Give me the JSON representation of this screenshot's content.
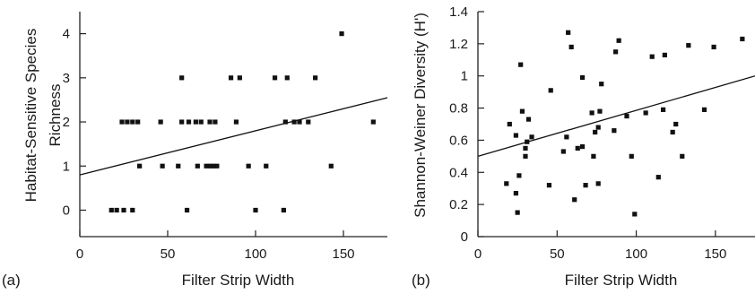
{
  "chart_data": [
    {
      "type": "scatter",
      "panel_label": "(a)",
      "xlabel": "Filter Strip Width",
      "ylabel_lines": [
        "Habitat-Sensitive Species",
        "Richness"
      ],
      "xlim": [
        0,
        175
      ],
      "ylim": [
        -0.6,
        4.5
      ],
      "xticks": [
        0,
        50,
        100,
        150
      ],
      "yticks": [
        0,
        1,
        2,
        3,
        4
      ],
      "points": [
        [
          18,
          0
        ],
        [
          21,
          0
        ],
        [
          25,
          0
        ],
        [
          30,
          0
        ],
        [
          61,
          0
        ],
        [
          100,
          0
        ],
        [
          116,
          0
        ],
        [
          34,
          1
        ],
        [
          47,
          1
        ],
        [
          56,
          1
        ],
        [
          67,
          1
        ],
        [
          72,
          1
        ],
        [
          74,
          1
        ],
        [
          76,
          1
        ],
        [
          78,
          1
        ],
        [
          96,
          1
        ],
        [
          106,
          1
        ],
        [
          143,
          1
        ],
        [
          24,
          2
        ],
        [
          27,
          2
        ],
        [
          30,
          2
        ],
        [
          33,
          2
        ],
        [
          46,
          2
        ],
        [
          58,
          2
        ],
        [
          62,
          2
        ],
        [
          66,
          2
        ],
        [
          69,
          2
        ],
        [
          74,
          2
        ],
        [
          77,
          2
        ],
        [
          89,
          2
        ],
        [
          117,
          2
        ],
        [
          122,
          2
        ],
        [
          125,
          2
        ],
        [
          130,
          2
        ],
        [
          167,
          2
        ],
        [
          58,
          3
        ],
        [
          86,
          3
        ],
        [
          91,
          3
        ],
        [
          111,
          3
        ],
        [
          118,
          3
        ],
        [
          134,
          3
        ],
        [
          149,
          4
        ]
      ],
      "trendline": {
        "x": [
          0,
          175
        ],
        "y": [
          0.8,
          2.55
        ]
      },
      "grid": false,
      "legend": "none"
    },
    {
      "type": "scatter",
      "panel_label": "(b)",
      "xlabel": "Filter Strip Width",
      "ylabel_lines": [
        "Shannon-Weiner Diversity (H')"
      ],
      "xlim": [
        0,
        175
      ],
      "ylim": [
        0,
        1.4
      ],
      "xticks": [
        0,
        50,
        100,
        150
      ],
      "yticks": [
        0,
        0.2,
        0.4,
        0.6,
        0.8,
        1,
        1.2,
        1.4
      ],
      "ytick_labels": [
        "0",
        "0.2",
        "0.4",
        "0.6",
        "0.8",
        "1",
        "1.2",
        "1.4"
      ],
      "points": [
        [
          18,
          0.33
        ],
        [
          20,
          0.7
        ],
        [
          24,
          0.27
        ],
        [
          25,
          0.15
        ],
        [
          26,
          0.38
        ],
        [
          24,
          0.63
        ],
        [
          27,
          1.07
        ],
        [
          28,
          0.78
        ],
        [
          30,
          0.5
        ],
        [
          30,
          0.55
        ],
        [
          31,
          0.59
        ],
        [
          32,
          0.73
        ],
        [
          34,
          0.62
        ],
        [
          45,
          0.32
        ],
        [
          46,
          0.91
        ],
        [
          54,
          0.53
        ],
        [
          56,
          0.62
        ],
        [
          57,
          1.27
        ],
        [
          59,
          1.18
        ],
        [
          61,
          0.23
        ],
        [
          63,
          0.55
        ],
        [
          66,
          0.56
        ],
        [
          66,
          0.99
        ],
        [
          68,
          0.32
        ],
        [
          72,
          0.77
        ],
        [
          73,
          0.5
        ],
        [
          74,
          0.65
        ],
        [
          76,
          0.33
        ],
        [
          76,
          0.68
        ],
        [
          77,
          0.78
        ],
        [
          78,
          0.95
        ],
        [
          86,
          0.66
        ],
        [
          87,
          1.15
        ],
        [
          89,
          1.22
        ],
        [
          94,
          0.75
        ],
        [
          97,
          0.5
        ],
        [
          99,
          0.14
        ],
        [
          106,
          0.77
        ],
        [
          110,
          1.12
        ],
        [
          114,
          0.37
        ],
        [
          117,
          0.79
        ],
        [
          118,
          1.13
        ],
        [
          123,
          0.65
        ],
        [
          125,
          0.7
        ],
        [
          129,
          0.5
        ],
        [
          133,
          1.19
        ],
        [
          143,
          0.79
        ],
        [
          149,
          1.18
        ],
        [
          167,
          1.23
        ]
      ],
      "trendline": {
        "x": [
          0,
          175
        ],
        "y": [
          0.5,
          1.0
        ]
      },
      "grid": false,
      "legend": "none"
    }
  ]
}
